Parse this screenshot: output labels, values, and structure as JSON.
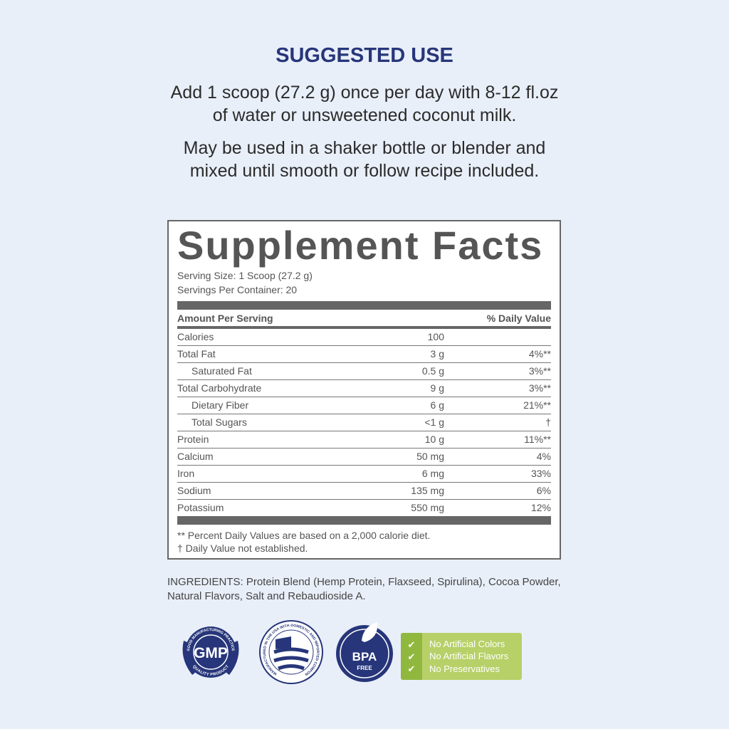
{
  "suggested_use": {
    "title": "SUGGESTED USE",
    "line1": "Add 1 scoop (27.2 g) once per day with 8-12 fl.oz",
    "line2": "of water or unsweetened coconut milk.",
    "line3": "May be used in a shaker bottle or blender and",
    "line4": "mixed until smooth or follow recipe included."
  },
  "facts": {
    "title": "Supplement Facts",
    "serving_size": "Serving Size: 1 Scoop (27.2 g)",
    "servings": "Servings Per Container: 20",
    "amount_header": "Amount Per Serving",
    "dv_header": "% Daily Value",
    "rows": [
      {
        "name": "Calories",
        "amount": "100",
        "dv": ""
      },
      {
        "name": "Total Fat",
        "amount": "3 g",
        "dv": "4%**"
      },
      {
        "name": "Saturated Fat",
        "amount": "0.5 g",
        "dv": "3%**"
      },
      {
        "name": "Total Carbohydrate",
        "amount": "9 g",
        "dv": "3%**"
      },
      {
        "name": "Dietary Fiber",
        "amount": "6 g",
        "dv": "21%**"
      },
      {
        "name": "Total Sugars",
        "amount": "<1 g",
        "dv": "†"
      },
      {
        "name": "Protein",
        "amount": "10 g",
        "dv": "11%**"
      },
      {
        "name": "Calcium",
        "amount": "50 mg",
        "dv": "4%"
      },
      {
        "name": "Iron",
        "amount": "6 mg",
        "dv": "33%"
      },
      {
        "name": "Sodium",
        "amount": "135 mg",
        "dv": "6%"
      },
      {
        "name": "Potassium",
        "amount": "550 mg",
        "dv": "12%"
      }
    ],
    "foot1": "** Percent Daily Values are based on a 2,000 calorie diet.",
    "foot2": "† Daily Value not established."
  },
  "ingredients": "INGREDIENTS: Protein Blend (Hemp Protein, Flaxseed, Spirulina), Cocoa Powder, Natural Flavors, Salt and Rebaudioside A.",
  "badges": {
    "gmp": "GMP",
    "gmp_top": "GOOD MANUFACTURING PRACTICE",
    "gmp_bottom": "QUALITY PRODUCT",
    "usa": "MANUFACTURED IN THE USA WITH DOMESTIC AND IMPORTED COMPONENTS.",
    "bpa": "BPA",
    "bpa_free": "FREE",
    "claims": [
      "No Artificial Colors",
      "No Artificial Flavors",
      "No Preservatives"
    ]
  },
  "colors": {
    "navy": "#27367a",
    "green": "#b7d068",
    "background": "#e9eff9"
  }
}
